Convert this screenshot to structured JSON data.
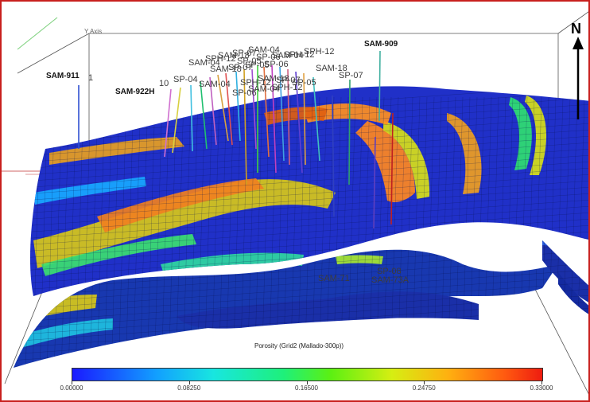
{
  "viewer": {
    "axis_label": "Y Axis",
    "north_label": "N"
  },
  "wells": {
    "sam911": "SAM-911",
    "one": "1",
    "sam922h": "SAM-922H",
    "ten": "10",
    "sp04": "SP-04",
    "sam909": "SAM-909",
    "sam18": "SAM-18",
    "sp07": "SP-07",
    "sam04": "SAM-04",
    "sph12": "SPH-12",
    "sam71": "SAM-71",
    "sp08": "SP-08",
    "sam73a": "SAM-73A",
    "cluster": [
      "SAM-04",
      "SPH-12",
      "SAM-18",
      "SP-07",
      "SP-05",
      "SP-06"
    ]
  },
  "legend": {
    "title": "Porosity (Grid2 (Mallado-300p))",
    "ticks": [
      "0.00000",
      "0.08250",
      "0.16500",
      "0.24750",
      "0.33000"
    ],
    "min": 0,
    "max": 0.33
  },
  "colors": {
    "frame_border": "#c8201e",
    "low": "#1a1aff",
    "mid": "#1ef07a",
    "high": "#ee1c10"
  }
}
